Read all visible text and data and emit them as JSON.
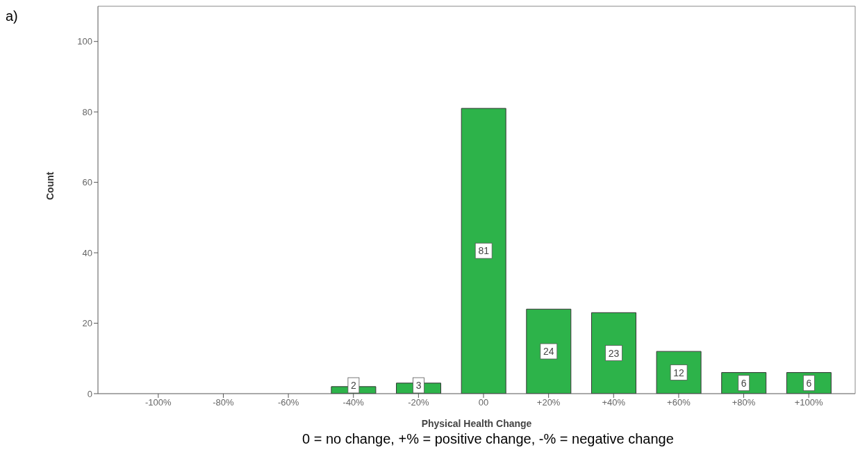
{
  "chart_data": {
    "type": "bar",
    "xlabel": "Physical Health Change",
    "ylabel": "Count",
    "categories": [
      "-100%",
      "-80%",
      "-60%",
      "-40%",
      "-20%",
      "00",
      "+20%",
      "+40%",
      "+60%",
      "+80%",
      "+100%"
    ],
    "values": [
      0,
      0,
      0,
      2,
      3,
      81,
      24,
      23,
      12,
      6,
      6
    ],
    "value_labels": [
      null,
      null,
      null,
      "2",
      "3",
      "81",
      "24",
      "23",
      "12",
      "6",
      "6"
    ],
    "color": "#2db34a",
    "ylim": [
      0,
      110
    ],
    "yticks": [
      0,
      20,
      40,
      60,
      80,
      100
    ],
    "grid": false,
    "legend": false,
    "annotations": [
      "a)",
      "0 = no change, +% = positive change, -% = negative change"
    ]
  }
}
